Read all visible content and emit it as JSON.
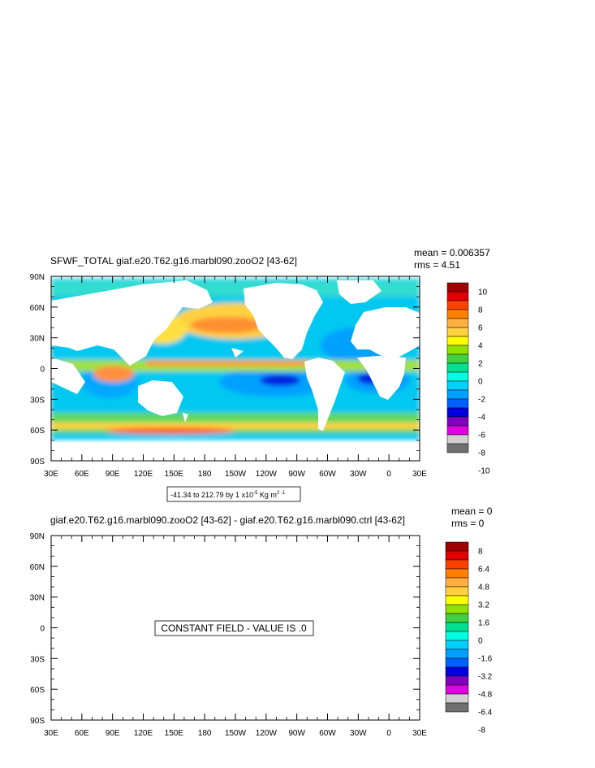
{
  "panels": [
    {
      "title": "SFWF_TOTAL giaf.e20.T62.g16.marbl090.zooO2 [43-62]",
      "stats": {
        "mean": "mean = 0.006357",
        "rms": "rms = 4.51"
      },
      "range_label": "-41.34 to 212.79 by 1 x10",
      "range_exp": "-5",
      "range_units": " Kg m",
      "range_units_exp": "2 -1",
      "colorbar_labels": [
        "10",
        "8",
        "6",
        "4",
        "2",
        "0",
        "-2",
        "-4",
        "-6",
        "-8",
        "-10"
      ]
    },
    {
      "title": "giaf.e20.T62.g16.marbl090.zooO2 [43-62] - giaf.e20.T62.g16.marbl090.ctrl [43-62]",
      "stats": {
        "mean": "mean = 0",
        "rms": "rms = 0"
      },
      "message": "CONSTANT FIELD - VALUE IS .0",
      "colorbar_labels": [
        "8",
        "6.4",
        "4.8",
        "3.2",
        "1.6",
        "0",
        "-1.6",
        "-3.2",
        "-4.8",
        "-6.4",
        "-8"
      ]
    }
  ],
  "axes": {
    "lat_labels": [
      "90N",
      "60N",
      "30N",
      "0",
      "30S",
      "60S",
      "90S"
    ],
    "lon_labels": [
      "30E",
      "60E",
      "90E",
      "120E",
      "150E",
      "180",
      "150W",
      "120W",
      "90W",
      "60W",
      "30W",
      "0",
      "30E"
    ]
  },
  "colormap": [
    "#a00000",
    "#e00000",
    "#ff4000",
    "#ff8000",
    "#ffb040",
    "#ffd040",
    "#ffff00",
    "#90e000",
    "#40d040",
    "#00e090",
    "#00ffe0",
    "#00d0ff",
    "#00a0ff",
    "#0060ff",
    "#0000e0",
    "#8000c0",
    "#e000e0",
    "#d0d0d0",
    "#707070"
  ],
  "chart_data": [
    {
      "type": "heatmap",
      "title": "SFWF_TOTAL giaf.e20.T62.g16.marbl090.zooO2 [43-62]",
      "x_ticks": [
        "30E",
        "60E",
        "90E",
        "120E",
        "150E",
        "180",
        "150W",
        "120W",
        "90W",
        "60W",
        "30W",
        "0",
        "30E"
      ],
      "y_ticks": [
        "90N",
        "60N",
        "30N",
        "0",
        "30S",
        "60S",
        "90S"
      ],
      "xlim": [
        30,
        390
      ],
      "ylim": [
        -90,
        90
      ],
      "colorbar_range": [
        -10,
        10
      ],
      "mean": 0.006357,
      "rms": 4.51
    },
    {
      "type": "heatmap",
      "title": "giaf.e20.T62.g16.marbl090.zooO2 [43-62] - giaf.e20.T62.g16.marbl090.ctrl [43-62]",
      "x_ticks": [
        "30E",
        "60E",
        "90E",
        "120E",
        "150E",
        "180",
        "150W",
        "120W",
        "90W",
        "60W",
        "30W",
        "0",
        "30E"
      ],
      "y_ticks": [
        "90N",
        "60N",
        "30N",
        "0",
        "30S",
        "60S",
        "90S"
      ],
      "xlim": [
        30,
        390
      ],
      "ylim": [
        -90,
        90
      ],
      "colorbar_range": [
        -8,
        8
      ],
      "mean": 0,
      "rms": 0
    }
  ]
}
